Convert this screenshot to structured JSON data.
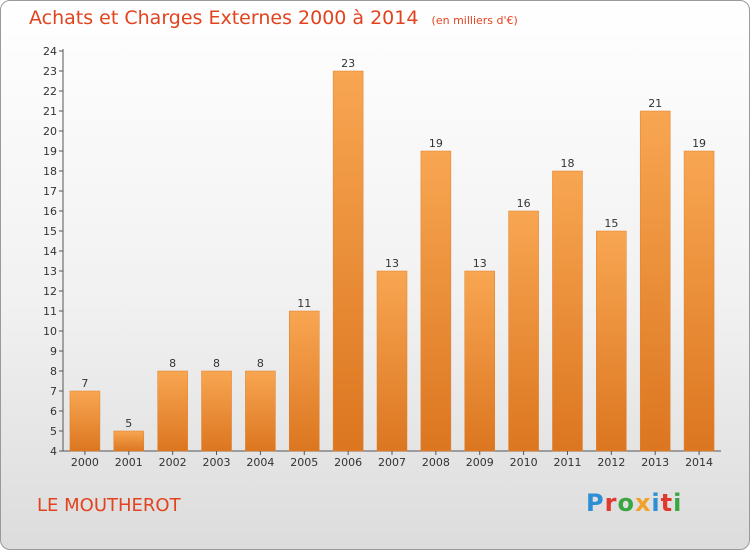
{
  "title": "Achats et Charges Externes 2000 à 2014",
  "unit": "(en milliers d'€)",
  "place": "LE MOUTHEROT",
  "logo": {
    "text": "Proxiti",
    "colors": [
      "#2e8fd6",
      "#e03a2f",
      "#3aa63f",
      "#f0a12a",
      "#2e8fd6",
      "#e03a2f",
      "#3aa63f"
    ]
  },
  "colors": {
    "bar_top": "#f8a652",
    "bar_bottom": "#dc7620",
    "title": "#e2431e"
  },
  "chart_data": {
    "type": "bar",
    "title": "Achats et Charges Externes 2000 à 2014",
    "ylabel": "en milliers d'€",
    "xlabel": "",
    "categories": [
      "2000",
      "2001",
      "2002",
      "2003",
      "2004",
      "2005",
      "2006",
      "2007",
      "2008",
      "2009",
      "2010",
      "2011",
      "2012",
      "2013",
      "2014"
    ],
    "values": [
      7,
      5,
      8,
      8,
      8,
      11,
      23,
      13,
      19,
      13,
      16,
      18,
      15,
      21,
      19
    ],
    "ylim": [
      4,
      24
    ],
    "ytick_step": 1,
    "grid": false
  }
}
